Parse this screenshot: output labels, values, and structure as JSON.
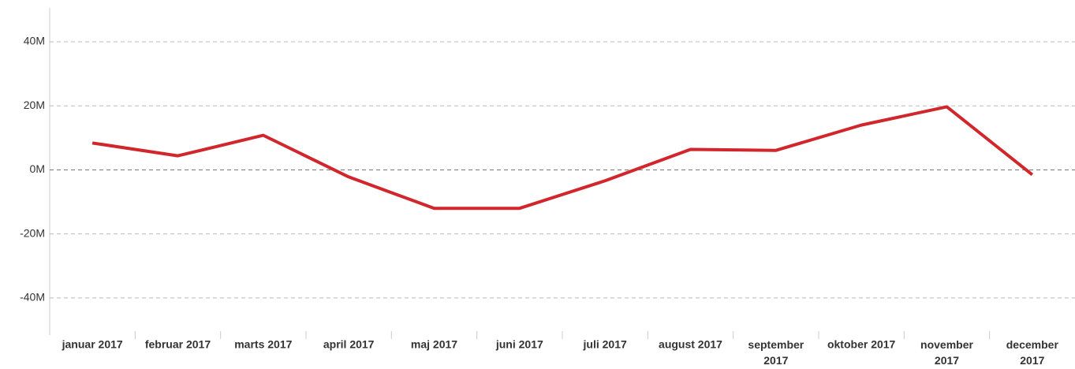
{
  "chart_data": {
    "type": "line",
    "categories": [
      "januar 2017",
      "februar 2017",
      "marts 2017",
      "april 2017",
      "maj 2017",
      "juni 2017",
      "juli 2017",
      "august 2017",
      "september 2017",
      "oktober 2017",
      "november 2017",
      "december 2017"
    ],
    "series": [
      {
        "color": "#d0262c",
        "values": [
          8.4,
          4.4,
          10.8,
          -2.2,
          -12,
          -12,
          -3.4,
          6.4,
          6.1,
          14,
          19.7,
          -1.5
        ]
      }
    ],
    "ylim": [
      -51.6,
      50.6
    ],
    "yticks": [
      {
        "value": -40,
        "label": "-40M"
      },
      {
        "value": -20,
        "label": "-20M"
      },
      {
        "value": 0,
        "label": "0M"
      },
      {
        "value": 20,
        "label": "20M"
      },
      {
        "value": 40,
        "label": "40M"
      }
    ],
    "grid": true
  }
}
